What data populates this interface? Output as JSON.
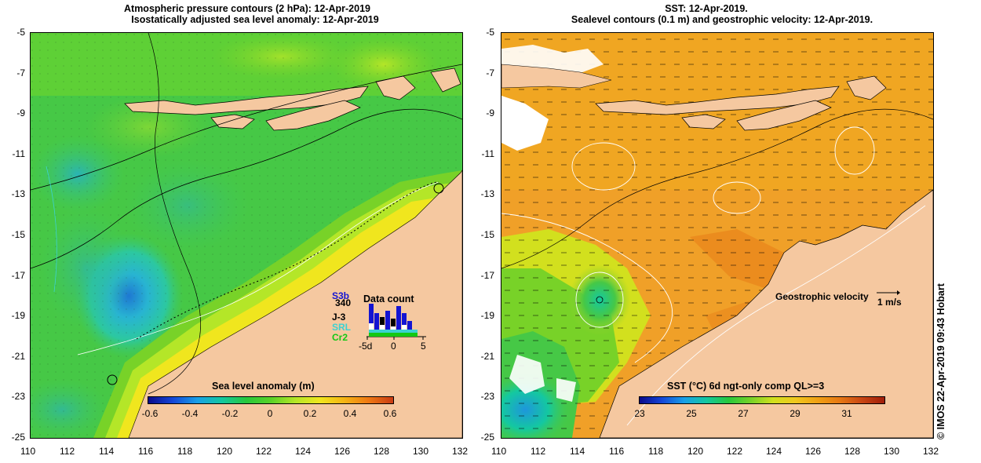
{
  "left_panel": {
    "title_line1": "Atmospheric pressure contours (2 hPa): 12-Apr-2019",
    "title_line2": "Isostatically adjusted sea level anomaly: 12-Apr-2019",
    "colorbar": {
      "title": "Sea level anomaly (m)",
      "ticks": [
        "-0.6",
        "-0.4",
        "-0.2",
        "0",
        "0.2",
        "0.4",
        "0.6"
      ],
      "colors": [
        "#0a0a8a",
        "#1446d8",
        "#18a0e8",
        "#14c8a0",
        "#28c83c",
        "#5ad228",
        "#b4e628",
        "#f0e61e",
        "#f5b414",
        "#ee7814",
        "#c83c14"
      ]
    },
    "data_count": {
      "title": "Data count",
      "satellites": [
        {
          "name": "S3b",
          "color": "#1414d2"
        },
        {
          "name": "340",
          "color": "#000000"
        },
        {
          "name": "J-3",
          "color": "#000000"
        },
        {
          "name": "SRL",
          "color": "#3cd2d2"
        },
        {
          "name": "Cr2",
          "color": "#14c814"
        }
      ],
      "x_ticks": [
        "-5d",
        "0",
        "5"
      ]
    }
  },
  "right_panel": {
    "title_line1": "SST: 12-Apr-2019.",
    "title_line2": "Sealevel contours (0.1 m) and geostrophic velocity: 12-Apr-2019.",
    "colorbar": {
      "title": "SST (°C) 6d ngt-only comp QL>=3",
      "ticks": [
        "23",
        "25",
        "27",
        "29",
        "31"
      ],
      "colors": [
        "#0a0a8a",
        "#1446d8",
        "#18a0e8",
        "#14c8a0",
        "#28c83c",
        "#78d228",
        "#d2e01e",
        "#f0c81e",
        "#f0a014",
        "#e67814",
        "#c84614",
        "#a01e0a"
      ]
    },
    "velocity_label": "Geostrophic velocity",
    "velocity_scale": "1 m/s"
  },
  "axes": {
    "x_ticks": [
      "110",
      "112",
      "114",
      "116",
      "118",
      "120",
      "122",
      "124",
      "126",
      "128",
      "130",
      "132"
    ],
    "y_ticks": [
      "-5",
      "-7",
      "-9",
      "-11",
      "-13",
      "-15",
      "-17",
      "-19",
      "-21",
      "-23",
      "-25"
    ]
  },
  "credit": "© IMOS 22-Apr-2019 09:43 Hobart",
  "colors": {
    "land": "#f5c8a0",
    "sea_green": "#46c846",
    "sst_orange": "#f0a028"
  }
}
